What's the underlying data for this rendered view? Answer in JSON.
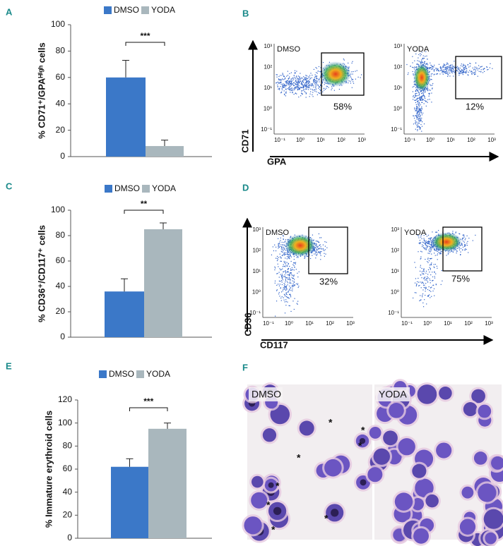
{
  "chart_data": [
    {
      "type": "bar",
      "panel": "A",
      "y_label": "% CD71⁺/GPAᴴⁱᵍʰ cells",
      "annotation": "***",
      "ylim": [
        0,
        100
      ],
      "yticks": [
        0,
        20,
        40,
        60,
        80,
        100
      ],
      "series": [
        {
          "name": "DMSO",
          "color": "#3b78c8",
          "values": [
            60
          ],
          "errors": [
            13
          ]
        },
        {
          "name": "YODA",
          "color": "#a9b7bd",
          "values": [
            8
          ],
          "errors": [
            4.5
          ]
        }
      ]
    },
    {
      "type": "bar",
      "panel": "C",
      "y_label": "% CD36⁺/CD117⁺ cells",
      "annotation": "**",
      "ylim": [
        0,
        100
      ],
      "yticks": [
        0,
        20,
        40,
        60,
        80,
        100
      ],
      "series": [
        {
          "name": "DMSO",
          "color": "#3b78c8",
          "values": [
            36
          ],
          "errors": [
            10
          ]
        },
        {
          "name": "YODA",
          "color": "#a9b7bd",
          "values": [
            85
          ],
          "errors": [
            5
          ]
        }
      ]
    },
    {
      "type": "bar",
      "panel": "E",
      "y_label": "% Immature erythroid cells",
      "annotation": "***",
      "ylim": [
        0,
        120
      ],
      "yticks": [
        0,
        20,
        40,
        60,
        80,
        100,
        120
      ],
      "series": [
        {
          "name": "DMSO",
          "color": "#3b78c8",
          "values": [
            62
          ],
          "errors": [
            7
          ]
        },
        {
          "name": "YODA",
          "color": "#a9b7bd",
          "values": [
            95
          ],
          "errors": [
            5
          ]
        }
      ]
    }
  ],
  "flow_panels": [
    {
      "panel": "B",
      "y_label": "CD71",
      "x_label": "GPA",
      "axis_tick_labels": [
        "10⁻¹",
        "10⁰",
        "10¹",
        "10²",
        "10³"
      ],
      "plots": [
        {
          "label": "DMSO",
          "gate_percent": "58%"
        },
        {
          "label": "YODA",
          "gate_percent": "12%"
        }
      ]
    },
    {
      "panel": "D",
      "y_label": "CD36",
      "x_label": "CD117",
      "axis_tick_labels": [
        "10⁻¹",
        "10⁰",
        "10¹",
        "10²",
        "10³"
      ],
      "plots": [
        {
          "label": "DMSO",
          "gate_percent": "32%"
        },
        {
          "label": "YODA",
          "gate_percent": "75%"
        }
      ]
    }
  ],
  "micrograph": {
    "panel": "F",
    "images": [
      {
        "label": "DMSO",
        "markers": [
          "*",
          "*",
          "*",
          "*",
          "*",
          "*",
          "*",
          "*"
        ]
      },
      {
        "label": "YODA"
      }
    ]
  }
}
